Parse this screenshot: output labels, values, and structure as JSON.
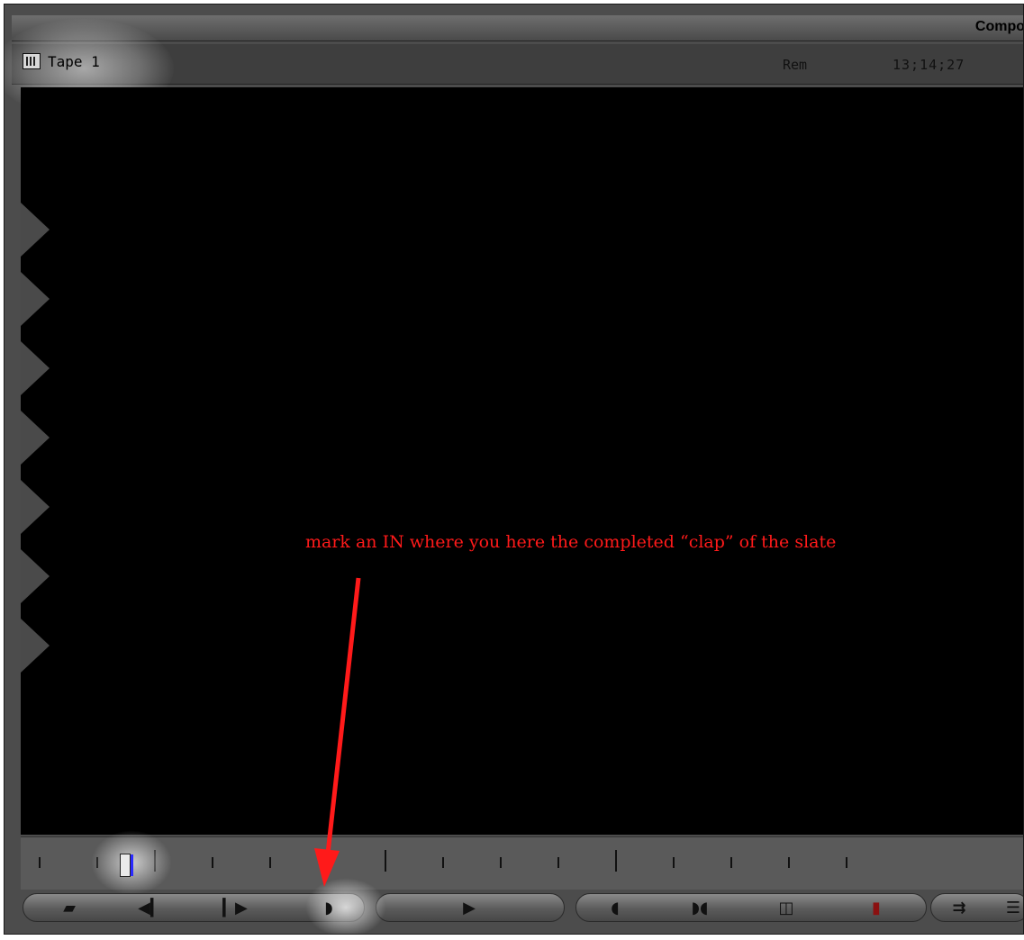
{
  "window": {
    "title": "Compo"
  },
  "track": {
    "tape_label": "Tape 1",
    "rem_label": "Rem",
    "timecode": "13;14;27"
  },
  "annotation": {
    "text": "mark an IN where you here the completed “clap” of the slate",
    "color": "#ff1a1a"
  },
  "controls": {
    "buttons": [
      {
        "name": "clip-tool-icon",
        "glyph": "▰"
      },
      {
        "name": "step-back-icon",
        "glyph": "◀▎"
      },
      {
        "name": "step-forward-icon",
        "glyph": "▎▶"
      },
      {
        "name": "mark-in-icon",
        "glyph": "◗"
      },
      {
        "name": "play-icon",
        "glyph": "▶"
      },
      {
        "name": "go-to-in-icon",
        "glyph": "◖"
      },
      {
        "name": "mark-clip-icon",
        "glyph": "◗◖"
      },
      {
        "name": "clear-marks-icon",
        "glyph": "◫"
      },
      {
        "name": "record-icon",
        "glyph": "▮"
      },
      {
        "name": "splice-in-icon",
        "glyph": "⇉"
      },
      {
        "name": "overwrite-icon",
        "glyph": "☰"
      }
    ]
  },
  "colors": {
    "viewer_bg": "#000000",
    "chrome": "#4c4c4c",
    "playhead_accent": "#2a2aff"
  }
}
